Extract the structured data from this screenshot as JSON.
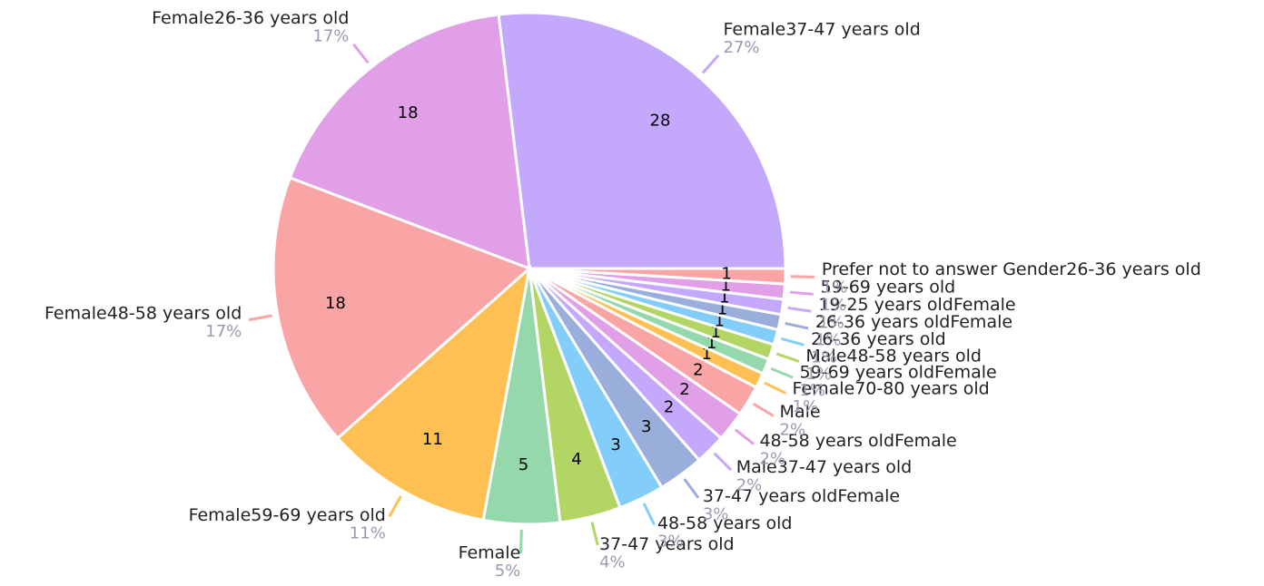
{
  "chart_data": {
    "type": "pie",
    "categories": [
      "Female37-47 years old",
      "Female26-36 years old",
      "Female48-58 years old",
      "Female59-69 years old",
      "Female",
      "37-47 years old",
      "48-58 years old",
      "37-47 years oldFemale",
      "Male37-47 years old",
      "48-58 years oldFemale",
      "Male",
      "Female70-80 years old",
      "59-69 years oldFemale",
      "Male48-58 years old",
      "26-36 years old",
      "26-36 years oldFemale",
      "19-25 years oldFemale",
      "59-69 years old",
      "Prefer not to answer Gender26-36 years old"
    ],
    "values": [
      28,
      18,
      18,
      11,
      5,
      4,
      3,
      3,
      2,
      2,
      2,
      1,
      1,
      1,
      1,
      1,
      1,
      1,
      1
    ],
    "value_labels": [
      "27%",
      "17%",
      "17%",
      "11%",
      "5%",
      "4%",
      "3%",
      "3%",
      "2%",
      "2%",
      "2%",
      "1%",
      "1%",
      "1%",
      "1%",
      "1%",
      "1%",
      "1%",
      "1%"
    ],
    "colors": [
      "#c4a8fc",
      "#e09fe6",
      "#f9a5a5",
      "#fec052",
      "#94d8ab",
      "#b2d563",
      "#82cdfa",
      "#99aedb"
    ]
  }
}
